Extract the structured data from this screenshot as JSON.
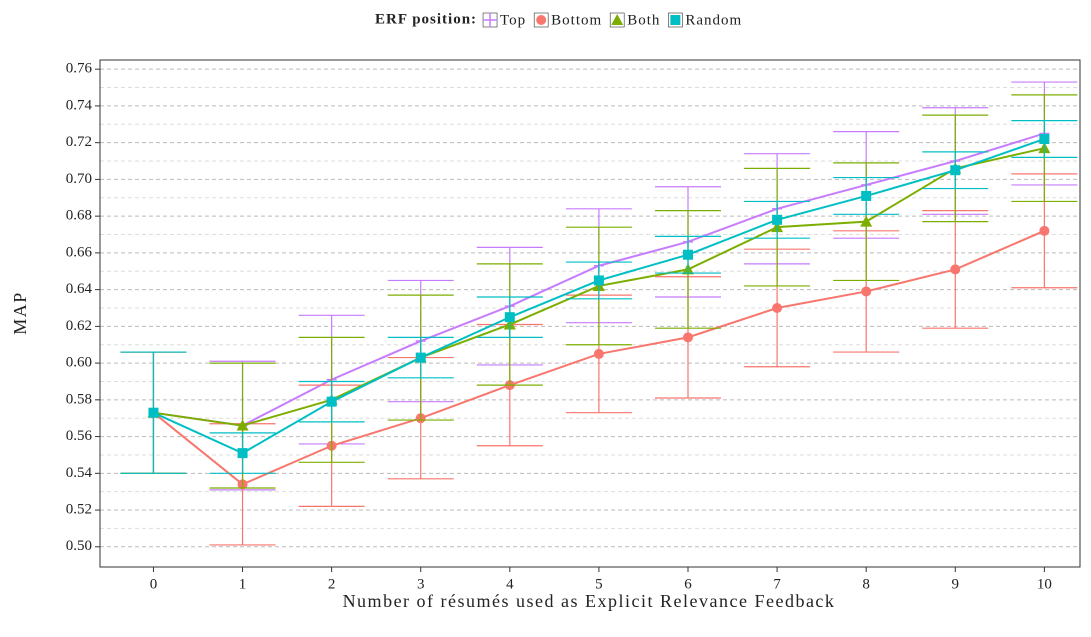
{
  "chart_data": {
    "type": "line",
    "xlabel": "Number of résumés used as Explicit Relevance Feedback",
    "ylabel": "MAP",
    "legend_title": "ERF position:",
    "legend_position": "top",
    "grid": true,
    "x": [
      0,
      1,
      2,
      3,
      4,
      5,
      6,
      7,
      8,
      9,
      10
    ],
    "xlim": [
      -0.6,
      10.4
    ],
    "xticks": [
      0,
      1,
      2,
      3,
      4,
      5,
      6,
      7,
      8,
      9,
      10
    ],
    "ylim": [
      0.489,
      0.765
    ],
    "yticks": [
      {
        "value": 0.5,
        "label": "0.50"
      },
      {
        "value": 0.52,
        "label": "0.52"
      },
      {
        "value": 0.54,
        "label": "0.54"
      },
      {
        "value": 0.56,
        "label": "0.56"
      },
      {
        "value": 0.58,
        "label": "0.58"
      },
      {
        "value": 0.6,
        "label": "0.60"
      },
      {
        "value": 0.62,
        "label": "0.62"
      },
      {
        "value": 0.64,
        "label": "0.64"
      },
      {
        "value": 0.66,
        "label": "0.66"
      },
      {
        "value": 0.68,
        "label": "0.68"
      },
      {
        "value": 0.7,
        "label": "0.70"
      },
      {
        "value": 0.72,
        "label": "0.72"
      },
      {
        "value": 0.74,
        "label": "0.74"
      },
      {
        "value": 0.76,
        "label": "0.76"
      }
    ],
    "series": [
      {
        "name": "Top",
        "color": "#c77cff",
        "marker": "plus",
        "values": [
          0.573,
          0.566,
          0.591,
          0.612,
          0.631,
          0.653,
          0.666,
          0.684,
          0.697,
          0.71,
          0.725
        ],
        "errors": [
          0.033,
          0.035,
          0.035,
          0.033,
          0.032,
          0.031,
          0.03,
          0.03,
          0.029,
          0.029,
          0.028
        ]
      },
      {
        "name": "Bottom",
        "color": "#f8766d",
        "marker": "circle",
        "values": [
          0.573,
          0.534,
          0.555,
          0.57,
          0.588,
          0.605,
          0.614,
          0.63,
          0.639,
          0.651,
          0.672
        ],
        "errors": [
          0.033,
          0.033,
          0.033,
          0.033,
          0.033,
          0.032,
          0.033,
          0.032,
          0.033,
          0.032,
          0.031
        ]
      },
      {
        "name": "Both",
        "color": "#7cae00",
        "marker": "triangle",
        "values": [
          0.573,
          0.566,
          0.58,
          0.603,
          0.621,
          0.642,
          0.651,
          0.674,
          0.677,
          0.706,
          0.717
        ],
        "errors": [
          0.033,
          0.034,
          0.034,
          0.034,
          0.033,
          0.032,
          0.032,
          0.032,
          0.032,
          0.029,
          0.029
        ]
      },
      {
        "name": "Random",
        "color": "#00bfc4",
        "marker": "square",
        "values": [
          0.573,
          0.551,
          0.579,
          0.603,
          0.625,
          0.645,
          0.659,
          0.678,
          0.691,
          0.705,
          0.722
        ],
        "errors": [
          0.033,
          0.011,
          0.011,
          0.011,
          0.011,
          0.01,
          0.01,
          0.01,
          0.01,
          0.01,
          0.01
        ]
      }
    ]
  }
}
